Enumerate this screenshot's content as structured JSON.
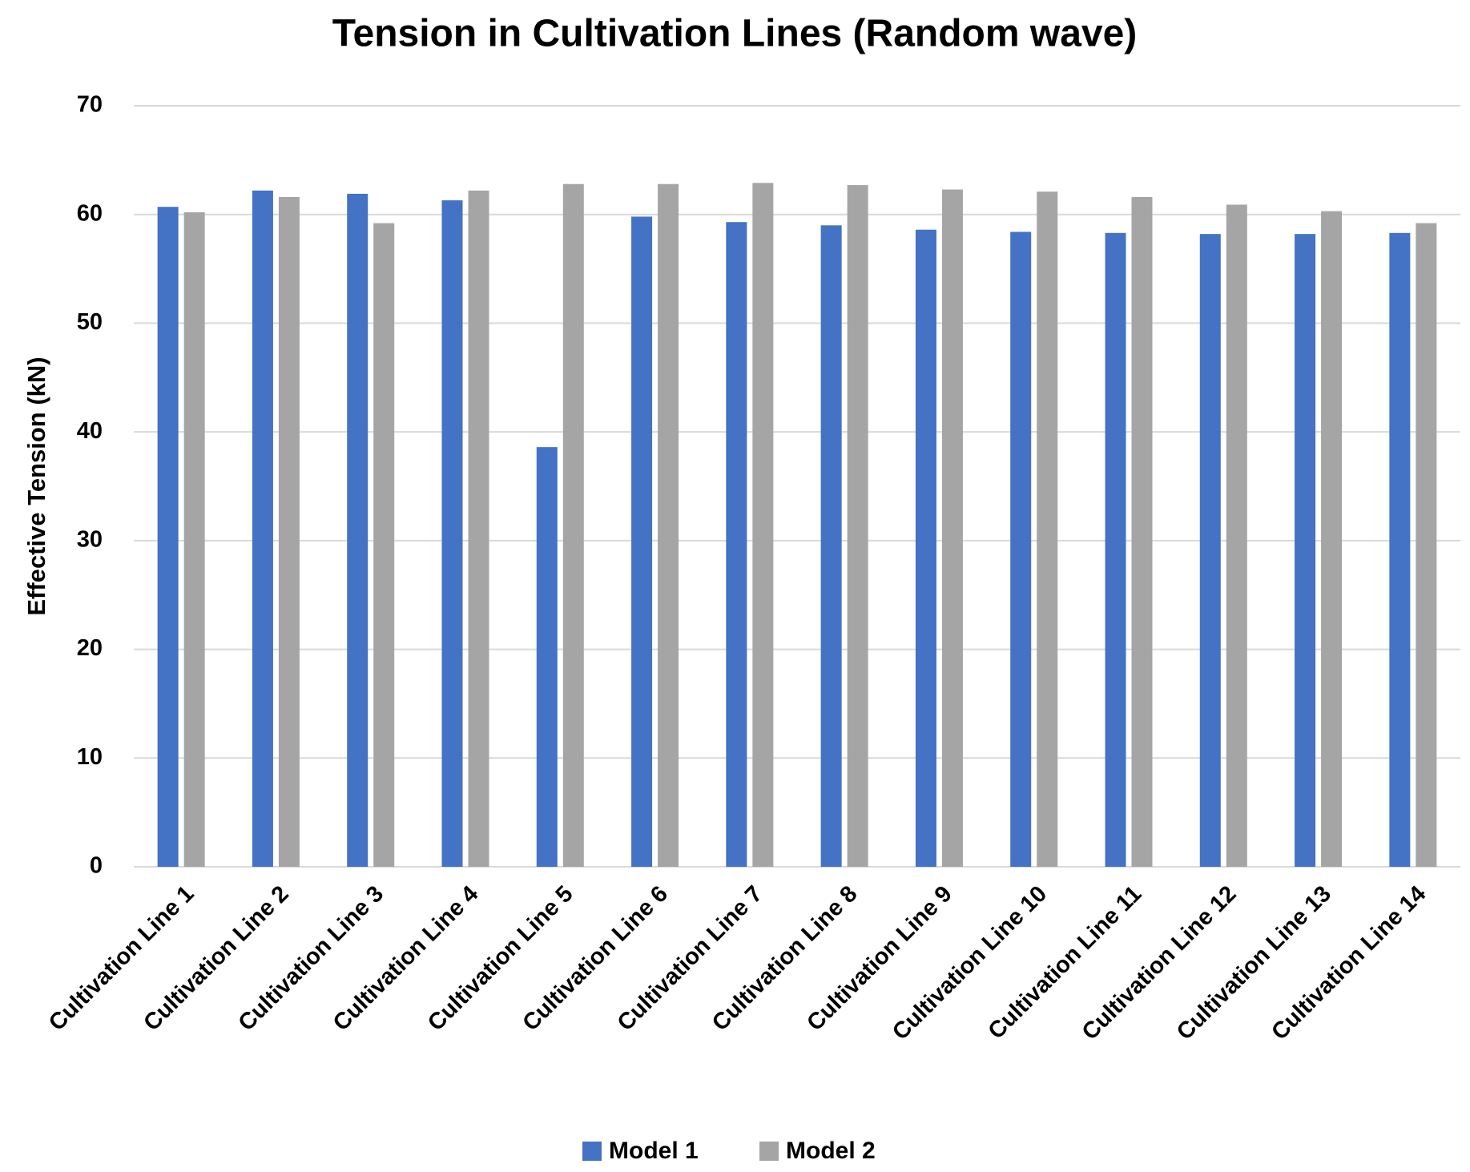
{
  "chart_data": {
    "type": "bar",
    "title": "Tension in Cultivation Lines (Random wave)",
    "y_label": "Effective Tension (kN)",
    "categories": [
      "Cultivation Line 1",
      "Cultivation Line 2",
      "Cultivation Line 3",
      "Cultivation Line 4",
      "Cultivation Line 5",
      "Cultivation Line 6",
      "Cultivation Line 7",
      "Cultivation Line 8",
      "Cultivation Line 9",
      "Cultivation Line 10",
      "Cultivation Line 11",
      "Cultivation Line 12",
      "Cultivation Line 13",
      "Cultivation Line 14"
    ],
    "series": [
      {
        "name": "Model 1",
        "color": "#4472c4",
        "values": [
          60.7,
          62.2,
          61.9,
          61.3,
          38.6,
          59.8,
          59.3,
          59.0,
          58.6,
          58.4,
          58.3,
          58.2,
          58.2,
          58.3
        ]
      },
      {
        "name": "Model 2",
        "color": "#a5a5a5",
        "values": [
          60.2,
          61.6,
          59.2,
          62.2,
          62.8,
          62.8,
          62.9,
          62.7,
          62.3,
          62.1,
          61.6,
          60.9,
          60.3,
          59.2
        ]
      }
    ],
    "ylim": [
      0,
      70
    ],
    "yticks": [
      0,
      10,
      20,
      30,
      40,
      50,
      60,
      70
    ],
    "grid": true,
    "legend": "bottom"
  }
}
